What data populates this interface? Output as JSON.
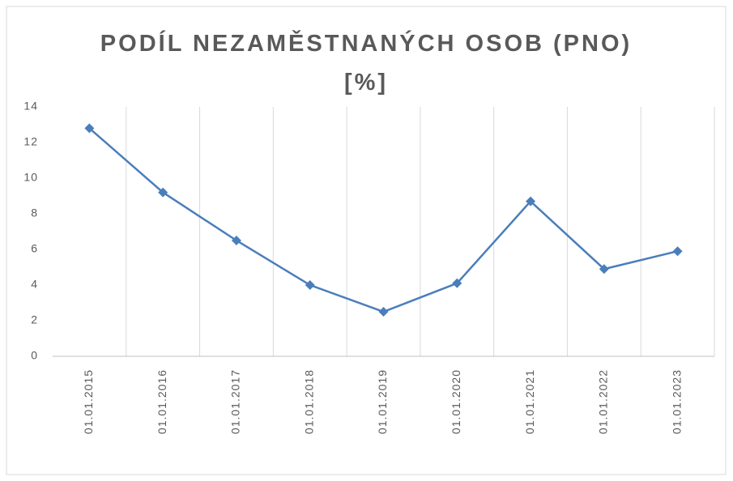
{
  "chart_data": {
    "type": "line",
    "title": "PODÍL NEZAMĚSTNANÝCH OSOB (PNO) [%]",
    "categories": [
      "01.01.2015",
      "01.01.2016",
      "01.01.2017",
      "01.01.2018",
      "01.01.2019",
      "01.01.2020",
      "01.01.2021",
      "01.01.2022",
      "01.01.2023"
    ],
    "values": [
      12.8,
      9.2,
      6.5,
      4.0,
      2.5,
      4.1,
      8.7,
      4.9,
      5.9
    ],
    "color": "#4a7ebb",
    "ylim": [
      0,
      14
    ],
    "yticks": [
      0,
      2,
      4,
      6,
      8,
      10,
      12,
      14
    ],
    "grid": "vertical"
  }
}
